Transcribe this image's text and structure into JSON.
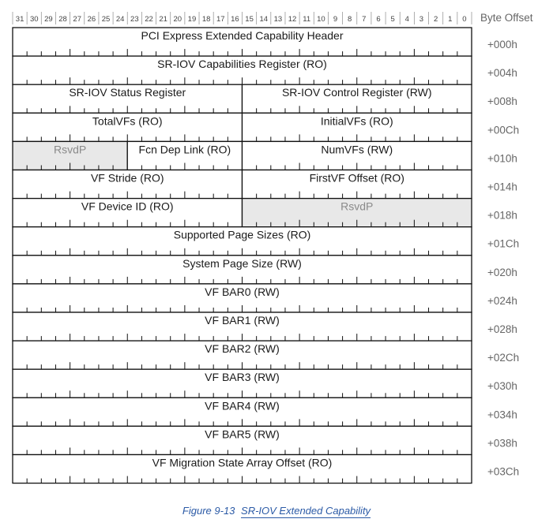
{
  "bit_numbers": [
    "31",
    "30",
    "29",
    "28",
    "27",
    "26",
    "25",
    "24",
    "23",
    "22",
    "21",
    "20",
    "19",
    "18",
    "17",
    "16",
    "15",
    "14",
    "13",
    "12",
    "11",
    "10",
    "9",
    "8",
    "7",
    "6",
    "5",
    "4",
    "3",
    "2",
    "1",
    "0"
  ],
  "byte_offset_header": "Byte Offset",
  "colors": {
    "border": "#111111",
    "reserved_fill": "#e8e8e8",
    "reserved_text": "#8a8a8a",
    "offset_text": "#666666",
    "caption": "#2b5aa6"
  },
  "rows": [
    {
      "offset": "+000h",
      "fields": [
        {
          "label": "PCI Express Extended Capability Header",
          "hi": 31,
          "lo": 0
        }
      ]
    },
    {
      "offset": "+004h",
      "fields": [
        {
          "label": "SR-IOV Capabilities Register (RO)",
          "hi": 31,
          "lo": 0
        }
      ]
    },
    {
      "offset": "+008h",
      "fields": [
        {
          "label": "SR-IOV Status Register",
          "hi": 31,
          "lo": 16
        },
        {
          "label": "SR-IOV Control Register (RW)",
          "hi": 15,
          "lo": 0
        }
      ]
    },
    {
      "offset": "+00Ch",
      "fields": [
        {
          "label": "TotalVFs (RO)",
          "hi": 31,
          "lo": 16
        },
        {
          "label": "InitialVFs (RO)",
          "hi": 15,
          "lo": 0
        }
      ]
    },
    {
      "offset": "+010h",
      "fields": [
        {
          "label": "RsvdP",
          "hi": 31,
          "lo": 24,
          "reserved": true
        },
        {
          "label": "Fcn Dep Link (RO)",
          "hi": 23,
          "lo": 16
        },
        {
          "label": "NumVFs (RW)",
          "hi": 15,
          "lo": 0
        }
      ]
    },
    {
      "offset": "+014h",
      "fields": [
        {
          "label": "VF Stride (RO)",
          "hi": 31,
          "lo": 16
        },
        {
          "label": "FirstVF Offset (RO)",
          "hi": 15,
          "lo": 0
        }
      ]
    },
    {
      "offset": "+018h",
      "fields": [
        {
          "label": "VF Device ID (RO)",
          "hi": 31,
          "lo": 16
        },
        {
          "label": "RsvdP",
          "hi": 15,
          "lo": 0,
          "reserved": true
        }
      ]
    },
    {
      "offset": "+01Ch",
      "fields": [
        {
          "label": "Supported Page Sizes (RO)",
          "hi": 31,
          "lo": 0
        }
      ]
    },
    {
      "offset": "+020h",
      "fields": [
        {
          "label": "System Page Size (RW)",
          "hi": 31,
          "lo": 0
        }
      ]
    },
    {
      "offset": "+024h",
      "fields": [
        {
          "label": "VF BAR0 (RW)",
          "hi": 31,
          "lo": 0
        }
      ]
    },
    {
      "offset": "+028h",
      "fields": [
        {
          "label": "VF BAR1 (RW)",
          "hi": 31,
          "lo": 0
        }
      ]
    },
    {
      "offset": "+02Ch",
      "fields": [
        {
          "label": "VF BAR2 (RW)",
          "hi": 31,
          "lo": 0
        }
      ]
    },
    {
      "offset": "+030h",
      "fields": [
        {
          "label": "VF BAR3 (RW)",
          "hi": 31,
          "lo": 0
        }
      ]
    },
    {
      "offset": "+034h",
      "fields": [
        {
          "label": "VF BAR4 (RW)",
          "hi": 31,
          "lo": 0
        }
      ]
    },
    {
      "offset": "+038h",
      "fields": [
        {
          "label": "VF BAR5 (RW)",
          "hi": 31,
          "lo": 0
        }
      ]
    },
    {
      "offset": "+03Ch",
      "fields": [
        {
          "label": "VF Migration State Array Offset (RO)",
          "hi": 31,
          "lo": 0
        }
      ]
    }
  ],
  "caption": {
    "figure": "Figure 9-13",
    "title": "SR-IOV Extended Capability"
  }
}
